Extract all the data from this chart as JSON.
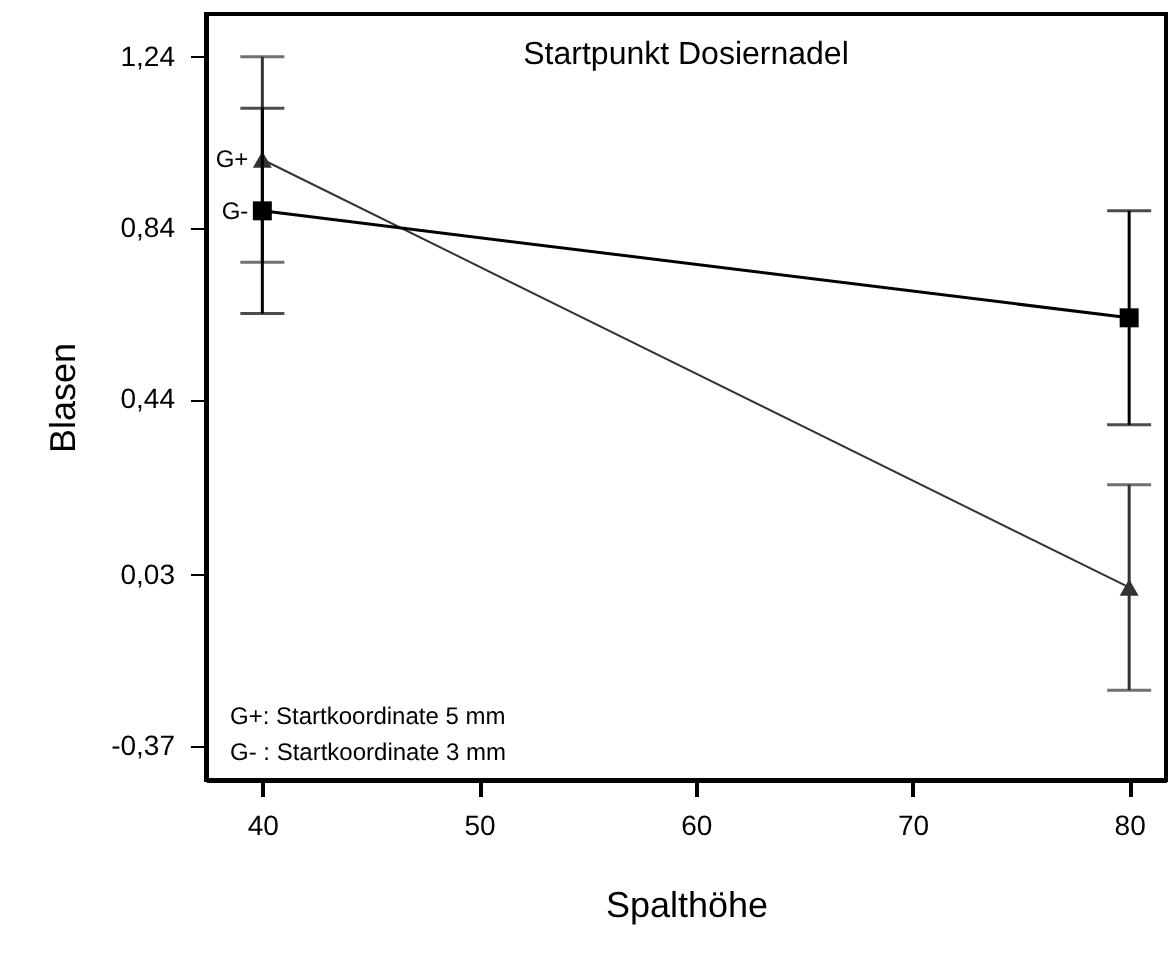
{
  "chart_data": {
    "type": "line",
    "title": "Startpunkt Dosiernadel",
    "xlabel": "Spalthöhe",
    "ylabel": "Blasen",
    "x": [
      40,
      80
    ],
    "series": [
      {
        "name": "G+",
        "color": "#333333",
        "marker": "triangle",
        "values": [
          1.0,
          0.0
        ],
        "errors": [
          0.24,
          0.24
        ]
      },
      {
        "name": "G-",
        "color": "#000000",
        "marker": "square",
        "values": [
          0.88,
          0.63
        ],
        "errors": [
          0.24,
          0.25
        ]
      }
    ],
    "xlim": [
      37.4,
      81.7
    ],
    "xticks": [
      40,
      50,
      60,
      70,
      80
    ],
    "ylim": [
      -0.45,
      1.34
    ],
    "yticks": [
      {
        "value": -0.37,
        "label": "-0,37"
      },
      {
        "value": 0.03,
        "label": "0,03"
      },
      {
        "value": 0.44,
        "label": "0,44"
      },
      {
        "value": 0.84,
        "label": "0,84"
      },
      {
        "value": 1.24,
        "label": "1,24"
      }
    ],
    "annotations": [
      "G+: Startkoordinate 5 mm",
      "G- : Startkoordinate 3 mm"
    ],
    "grid": false,
    "line_style": "solid"
  }
}
